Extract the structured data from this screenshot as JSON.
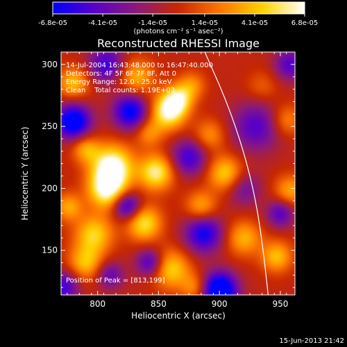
{
  "chart_data": {
    "type": "heatmap",
    "title": "Reconstructed RHESSI Image",
    "xlabel": "Heliocentric X (arcsec)",
    "ylabel": "Heliocentric Y (arcsec)",
    "xlim": [
      770,
      962
    ],
    "ylim": [
      114,
      310
    ],
    "x_ticks": [
      800,
      850,
      900,
      950
    ],
    "y_ticks": [
      150,
      200,
      250,
      300
    ],
    "colorbar": {
      "ticks": [
        "-6.8e-05",
        "-4.1e-05",
        "-1.4e-05",
        "1.4e-05",
        "4.1e-05",
        "6.8e-05"
      ],
      "tick_values": [
        -6.8e-05,
        -4.1e-05,
        -1.4e-05,
        1.4e-05,
        4.1e-05,
        6.8e-05
      ],
      "units": "(photons cm⁻² s⁻¹ asec⁻²)",
      "min": -6.8e-05,
      "max": 6.8e-05,
      "colors": [
        "#0000ff",
        "#5a00c8",
        "#8b1a7a",
        "#c82800",
        "#ff7800",
        "#ffd200",
        "#ffffff"
      ]
    },
    "annotations": {
      "time_range": "14-Jul-2004 16:43:48.000 to 16:47:40.000",
      "detectors": "Detectors: 4F 5F 6F 7F 8F, Att 0",
      "energy_range": "Energy Range: 12.0 - 25.0 keV",
      "clean": "Clean    Total counts: 1.19E+03",
      "peak": "Position of Peak = [813,199]"
    },
    "limb": {
      "points": [
        [
          888,
          310
        ],
        [
          906,
          270
        ],
        [
          920,
          230
        ],
        [
          930,
          190
        ],
        [
          936,
          150
        ],
        [
          940,
          114
        ]
      ]
    },
    "blobs": [
      [
        858,
        262,
        2.2,
        10
      ],
      [
        866,
        272,
        1.6,
        8
      ],
      [
        812,
        218,
        2.4,
        12
      ],
      [
        808,
        199,
        2.2,
        11
      ],
      [
        848,
        213,
        2.0,
        10
      ],
      [
        838,
        172,
        1.8,
        10
      ],
      [
        797,
        163,
        1.6,
        11
      ],
      [
        790,
        140,
        1.4,
        10
      ],
      [
        860,
        135,
        1.6,
        11
      ],
      [
        905,
        212,
        1.6,
        10
      ],
      [
        885,
        185,
        1.3,
        9
      ],
      [
        780,
        285,
        1.4,
        9
      ],
      [
        790,
        232,
        1.2,
        8
      ],
      [
        832,
        290,
        1.3,
        10
      ],
      [
        877,
        283,
        1.0,
        8
      ],
      [
        920,
        160,
        1.3,
        10
      ],
      [
        958,
        198,
        1.2,
        9
      ],
      [
        947,
        145,
        1.4,
        9
      ],
      [
        892,
        243,
        1.0,
        9
      ],
      [
        842,
        245,
        1.0,
        8
      ],
      [
        776,
        185,
        1.2,
        8
      ],
      [
        955,
        255,
        1.0,
        9
      ],
      [
        880,
        120,
        1.0,
        8
      ],
      [
        935,
        282,
        0.6,
        9
      ],
      [
        900,
        118,
        -3.0,
        10
      ],
      [
        780,
        254,
        -2.6,
        10
      ],
      [
        827,
        262,
        -2.2,
        10
      ],
      [
        824,
        186,
        -2.0,
        8
      ],
      [
        887,
        164,
        -2.0,
        11
      ],
      [
        875,
        225,
        -1.6,
        10
      ],
      [
        843,
        140,
        -1.6,
        8
      ],
      [
        930,
        250,
        -1.4,
        14
      ],
      [
        807,
        300,
        -1.6,
        10
      ],
      [
        958,
        300,
        -1.4,
        9
      ],
      [
        950,
        180,
        -1.4,
        8
      ],
      [
        772,
        121,
        -1.6,
        9
      ],
      [
        920,
        200,
        -1.0,
        10
      ],
      [
        810,
        130,
        -1.2,
        8
      ]
    ]
  },
  "footer": {
    "timestamp": "15-Jun-2013 21:42"
  }
}
